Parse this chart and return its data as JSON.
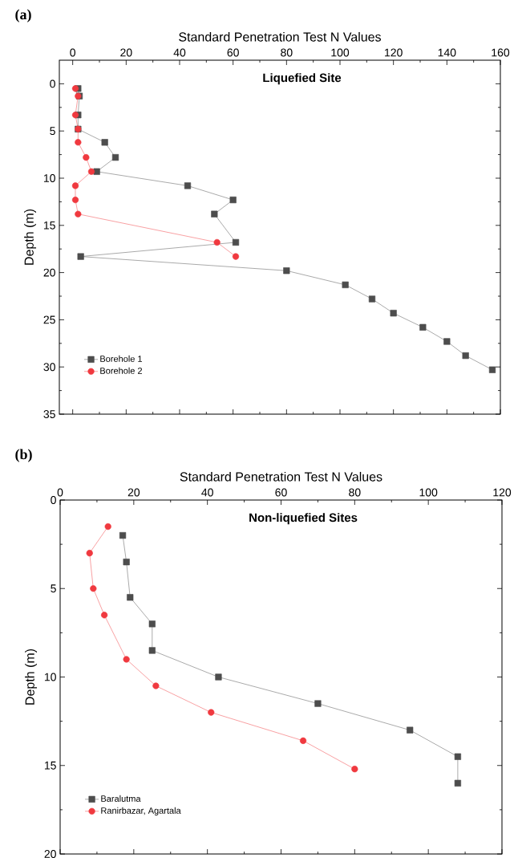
{
  "chart_data": [
    {
      "type": "line",
      "title": "Liquefied Site",
      "xlabel": "Standard Penetration Test N Values",
      "ylabel": "Depth (m)",
      "annotations": [
        "(a)"
      ],
      "xlim": [
        -5,
        160
      ],
      "xticks": [
        0,
        20,
        40,
        60,
        80,
        100,
        120,
        140,
        160
      ],
      "ylim": [
        35,
        -2.5
      ],
      "yticks": [
        0,
        5,
        10,
        15,
        20,
        25,
        30,
        35
      ],
      "legend": "bottom left",
      "series": [
        {
          "name": "Borehole 1",
          "color": "#4d4d4d",
          "marker": "square",
          "x": [
            2,
            2.5,
            2,
            2,
            12,
            16,
            9,
            43,
            60,
            53,
            61,
            3,
            80,
            102,
            112,
            120,
            131,
            140,
            147,
            157
          ],
          "values": [
            0.5,
            1.3,
            3.3,
            4.8,
            6.2,
            7.8,
            9.3,
            10.8,
            12.3,
            13.8,
            16.8,
            18.3,
            19.8,
            21.3,
            22.8,
            24.3,
            25.8,
            27.3,
            28.8,
            30.3
          ]
        },
        {
          "name": "Borehole 2",
          "color": "#f0393f",
          "marker": "circle",
          "x": [
            1,
            2,
            1,
            2,
            2,
            5,
            7,
            1,
            1,
            2,
            54,
            61
          ],
          "values": [
            0.5,
            1.3,
            3.3,
            4.8,
            6.2,
            7.8,
            9.3,
            10.8,
            12.3,
            13.8,
            16.8,
            18.3
          ]
        }
      ]
    },
    {
      "type": "line",
      "title": "Non-liquefied Sites",
      "xlabel": "Standard Penetration Test N Values",
      "ylabel": "Depth (m)",
      "annotations": [
        "(b)"
      ],
      "xlim": [
        0,
        120
      ],
      "xticks": [
        0,
        20,
        40,
        60,
        80,
        100,
        120
      ],
      "ylim": [
        20,
        0
      ],
      "yticks": [
        0,
        5,
        10,
        15,
        20
      ],
      "legend": "bottom left",
      "series": [
        {
          "name": "Baralutma",
          "color": "#4d4d4d",
          "marker": "square",
          "x": [
            17,
            18,
            19,
            25,
            25,
            43,
            70,
            95,
            108,
            108
          ],
          "values": [
            2,
            3.5,
            5.5,
            7,
            8.5,
            10,
            11.5,
            13,
            14.5,
            16
          ]
        },
        {
          "name": "Ranirbazar, Agartala",
          "color": "#f0393f",
          "marker": "circle",
          "x": [
            13,
            8,
            9,
            12,
            18,
            26,
            41,
            66,
            80
          ],
          "values": [
            1.5,
            3,
            5,
            6.5,
            9,
            10.5,
            12,
            13.6,
            15.2
          ]
        }
      ]
    }
  ]
}
